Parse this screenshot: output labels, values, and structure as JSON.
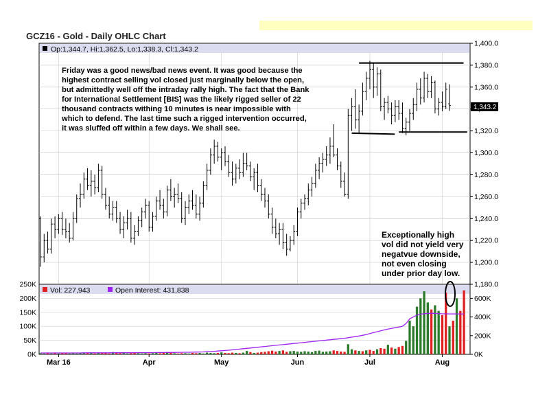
{
  "title": "GCZ16 - Gold - Daily OHLC Chart",
  "header_info": "Op:1,344.7, Hi:1,362.5, Lo:1,338.3, Cl:1,343.2",
  "last_price": "1,343.2",
  "colors": {
    "panel_header": "#dcdcf0",
    "highlight_bar": "#ffffc0",
    "ohlc": "#000000",
    "vol_up": "#2a7a2a",
    "vol_down": "#e02020",
    "open_interest": "#a020f0",
    "grid": "#cccccc"
  },
  "annotation_main": [
    "Friday was a good news/bad news event.  It was good because the",
    "highest contract selling vol closed just marginally below the open,",
    "but admittedly well off the intraday rally high.  The fact that the Bank",
    "for International Settlement [BIS] was the likely rigged seller of 22",
    "thousand contracts withing 10 minutes is near impossible with",
    "which to defend.  The last time such a rigged intervention occurred,",
    "it was sluffed off within a few days.  We shall see."
  ],
  "annotation_vol": [
    "Exceptionally high",
    "vol did not yield very",
    "negatvue downside,",
    "not even closing",
    "under prior day low."
  ],
  "chart_data": [
    {
      "type": "ohlc",
      "title": "GCZ16 - Gold - Daily OHLC Chart",
      "ylim": [
        1180,
        1400
      ],
      "y_ticks": [
        "1,400.0",
        "1,380.0",
        "1,360.0",
        "1,340.0",
        "1,320.0",
        "1,300.0",
        "1,280.0",
        "1,260.0",
        "1,240.0",
        "1,220.0",
        "1,200.0",
        "1,180.0"
      ],
      "y_tick_values": [
        1400,
        1380,
        1360,
        1340,
        1320,
        1300,
        1280,
        1260,
        1240,
        1220,
        1200,
        1180
      ],
      "x_labels": [
        "Mar 16",
        "Apr",
        "May",
        "Jun",
        "Jul",
        "Aug"
      ],
      "x_label_bar_index": [
        5,
        30,
        50,
        71,
        91,
        111
      ],
      "grid": true,
      "bars": [
        [
          1240,
          1242,
          1196,
          1205
        ],
        [
          1205,
          1226,
          1200,
          1220
        ],
        [
          1220,
          1228,
          1208,
          1212
        ],
        [
          1212,
          1240,
          1208,
          1235
        ],
        [
          1235,
          1242,
          1222,
          1230
        ],
        [
          1230,
          1244,
          1226,
          1240
        ],
        [
          1240,
          1246,
          1225,
          1230
        ],
        [
          1230,
          1240,
          1222,
          1228
        ],
        [
          1228,
          1236,
          1218,
          1222
        ],
        [
          1222,
          1246,
          1220,
          1240
        ],
        [
          1240,
          1262,
          1236,
          1258
        ],
        [
          1258,
          1272,
          1250,
          1262
        ],
        [
          1262,
          1282,
          1258,
          1276
        ],
        [
          1276,
          1286,
          1266,
          1270
        ],
        [
          1270,
          1284,
          1260,
          1274
        ],
        [
          1274,
          1280,
          1262,
          1268
        ],
        [
          1268,
          1290,
          1264,
          1284
        ],
        [
          1284,
          1288,
          1258,
          1262
        ],
        [
          1262,
          1268,
          1248,
          1252
        ],
        [
          1252,
          1260,
          1240,
          1244
        ],
        [
          1244,
          1256,
          1238,
          1250
        ],
        [
          1250,
          1256,
          1236,
          1240
        ],
        [
          1240,
          1246,
          1226,
          1230
        ],
        [
          1230,
          1242,
          1222,
          1236
        ],
        [
          1236,
          1248,
          1230,
          1240
        ],
        [
          1240,
          1246,
          1218,
          1222
        ],
        [
          1222,
          1234,
          1216,
          1228
        ],
        [
          1228,
          1242,
          1224,
          1238
        ],
        [
          1238,
          1250,
          1232,
          1246
        ],
        [
          1246,
          1258,
          1240,
          1252
        ],
        [
          1252,
          1256,
          1228,
          1232
        ],
        [
          1232,
          1246,
          1228,
          1242
        ],
        [
          1242,
          1260,
          1238,
          1256
        ],
        [
          1256,
          1266,
          1248,
          1252
        ],
        [
          1252,
          1258,
          1240,
          1246
        ],
        [
          1246,
          1270,
          1242,
          1266
        ],
        [
          1266,
          1276,
          1256,
          1260
        ],
        [
          1260,
          1268,
          1250,
          1262
        ],
        [
          1262,
          1272,
          1254,
          1258
        ],
        [
          1258,
          1264,
          1236,
          1240
        ],
        [
          1240,
          1256,
          1234,
          1250
        ],
        [
          1250,
          1262,
          1244,
          1256
        ],
        [
          1256,
          1266,
          1248,
          1252
        ],
        [
          1252,
          1262,
          1240,
          1244
        ],
        [
          1244,
          1260,
          1238,
          1254
        ],
        [
          1254,
          1274,
          1250,
          1270
        ],
        [
          1270,
          1290,
          1266,
          1284
        ],
        [
          1284,
          1304,
          1280,
          1298
        ],
        [
          1298,
          1312,
          1290,
          1306
        ],
        [
          1306,
          1310,
          1292,
          1296
        ],
        [
          1296,
          1304,
          1284,
          1300
        ],
        [
          1300,
          1306,
          1288,
          1292
        ],
        [
          1292,
          1298,
          1278,
          1282
        ],
        [
          1282,
          1292,
          1270,
          1276
        ],
        [
          1276,
          1290,
          1272,
          1286
        ],
        [
          1286,
          1294,
          1276,
          1282
        ],
        [
          1282,
          1300,
          1278,
          1290
        ],
        [
          1290,
          1300,
          1284,
          1288
        ],
        [
          1288,
          1292,
          1274,
          1278
        ],
        [
          1278,
          1286,
          1266,
          1282
        ],
        [
          1282,
          1290,
          1264,
          1270
        ],
        [
          1270,
          1276,
          1256,
          1262
        ],
        [
          1262,
          1268,
          1250,
          1256
        ],
        [
          1256,
          1262,
          1240,
          1244
        ],
        [
          1244,
          1250,
          1226,
          1232
        ],
        [
          1232,
          1240,
          1222,
          1226
        ],
        [
          1226,
          1236,
          1216,
          1230
        ],
        [
          1230,
          1236,
          1212,
          1218
        ],
        [
          1218,
          1226,
          1206,
          1212
        ],
        [
          1212,
          1224,
          1210,
          1220
        ],
        [
          1220,
          1234,
          1216,
          1228
        ],
        [
          1228,
          1250,
          1224,
          1246
        ],
        [
          1246,
          1258,
          1240,
          1254
        ],
        [
          1254,
          1262,
          1248,
          1258
        ],
        [
          1258,
          1272,
          1252,
          1266
        ],
        [
          1266,
          1278,
          1260,
          1272
        ],
        [
          1272,
          1290,
          1268,
          1284
        ],
        [
          1284,
          1296,
          1276,
          1290
        ],
        [
          1290,
          1300,
          1282,
          1294
        ],
        [
          1294,
          1306,
          1288,
          1298
        ],
        [
          1298,
          1314,
          1290,
          1306
        ],
        [
          1306,
          1326,
          1296,
          1298
        ],
        [
          1298,
          1304,
          1284,
          1288
        ],
        [
          1288,
          1292,
          1268,
          1274
        ],
        [
          1274,
          1282,
          1260,
          1262
        ],
        [
          1262,
          1340,
          1258,
          1334
        ],
        [
          1334,
          1350,
          1320,
          1342
        ],
        [
          1342,
          1358,
          1322,
          1330
        ],
        [
          1330,
          1344,
          1318,
          1338
        ],
        [
          1338,
          1364,
          1334,
          1356
        ],
        [
          1356,
          1374,
          1348,
          1368
        ],
        [
          1368,
          1384,
          1358,
          1376
        ],
        [
          1376,
          1382,
          1350,
          1360
        ],
        [
          1360,
          1378,
          1352,
          1372
        ],
        [
          1372,
          1376,
          1338,
          1342
        ],
        [
          1342,
          1350,
          1330,
          1346
        ],
        [
          1346,
          1352,
          1336,
          1340
        ],
        [
          1340,
          1346,
          1326,
          1334
        ],
        [
          1334,
          1348,
          1328,
          1342
        ],
        [
          1342,
          1348,
          1330,
          1336
        ],
        [
          1336,
          1346,
          1318,
          1322
        ],
        [
          1322,
          1332,
          1316,
          1328
        ],
        [
          1328,
          1340,
          1320,
          1336
        ],
        [
          1336,
          1350,
          1330,
          1344
        ],
        [
          1344,
          1364,
          1338,
          1358
        ],
        [
          1358,
          1368,
          1344,
          1350
        ],
        [
          1350,
          1374,
          1346,
          1368
        ],
        [
          1368,
          1372,
          1350,
          1356
        ],
        [
          1356,
          1370,
          1350,
          1364
        ],
        [
          1364,
          1366,
          1336,
          1340
        ],
        [
          1340,
          1350,
          1334,
          1346
        ],
        [
          1346,
          1356,
          1338,
          1342
        ],
        [
          1342,
          1364,
          1340,
          1358
        ],
        [
          1344.7,
          1362.5,
          1338.3,
          1343.2
        ]
      ],
      "trendlines": [
        {
          "from": [
            88,
            1382
          ],
          "to": [
            115,
            1382
          ]
        },
        {
          "from": [
            86,
            1318
          ],
          "to": [
            96,
            1317
          ]
        },
        {
          "from": [
            99,
            1319
          ],
          "to": [
            116,
            1319
          ]
        }
      ]
    },
    {
      "type": "bar",
      "legend": [
        {
          "name": "Vol: 227,943",
          "color": "#e02020"
        },
        {
          "name": "Open Interest: 431,838",
          "color": "#a020f0"
        }
      ],
      "ylim": [
        0,
        250000
      ],
      "y_ticks_left": [
        "250K",
        "200K",
        "150K",
        "100K",
        "50K",
        "0K"
      ],
      "y_ticks_right": [
        "600K",
        "400K",
        "200K",
        "0K"
      ],
      "y_ticks_right_values": [
        600000,
        400000,
        200000,
        0
      ],
      "oi_scale_max": 750000,
      "volume": [
        4000,
        3000,
        5000,
        3000,
        4000,
        3000,
        4000,
        5000,
        3000,
        4000,
        3000,
        4000,
        5000,
        6000,
        4000,
        3000,
        4000,
        5000,
        4000,
        3000,
        8000,
        6000,
        4000,
        5000,
        3000,
        4000,
        5000,
        4000,
        3000,
        4000,
        3000,
        4000,
        5000,
        4000,
        6000,
        8000,
        7000,
        4000,
        3000,
        4000,
        4000,
        3000,
        5000,
        4000,
        5000,
        3000,
        6000,
        5000,
        4000,
        5000,
        7000,
        5000,
        4000,
        6000,
        5000,
        4000,
        6000,
        12000,
        8000,
        5000,
        6000,
        8000,
        9000,
        11000,
        13000,
        10000,
        12000,
        14000,
        9000,
        11000,
        12000,
        10000,
        9000,
        11000,
        10000,
        8000,
        12000,
        13000,
        9000,
        10000,
        11000,
        14000,
        12000,
        10000,
        9000,
        36000,
        18000,
        14000,
        12000,
        11000,
        14000,
        16000,
        12000,
        18000,
        22000,
        20000,
        34000,
        24000,
        20000,
        26000,
        30000,
        48000,
        120000,
        100000,
        170000,
        200000,
        225000,
        185000,
        160000,
        175000,
        155000,
        140000,
        220000,
        100000,
        120000,
        200000,
        155000,
        227943
      ],
      "volume_up": [
        true,
        true,
        false,
        true,
        false,
        true,
        false,
        false,
        true,
        true,
        true,
        true,
        true,
        false,
        true,
        false,
        true,
        false,
        false,
        false,
        true,
        false,
        false,
        true,
        true,
        false,
        false,
        true,
        true,
        true,
        false,
        true,
        true,
        false,
        false,
        true,
        false,
        true,
        false,
        false,
        true,
        true,
        false,
        false,
        true,
        true,
        true,
        true,
        true,
        false,
        true,
        false,
        false,
        false,
        true,
        false,
        true,
        true,
        false,
        true,
        false,
        false,
        false,
        false,
        false,
        false,
        true,
        false,
        false,
        true,
        true,
        true,
        true,
        true,
        true,
        true,
        true,
        true,
        true,
        true,
        true,
        false,
        false,
        false,
        false,
        true,
        true,
        false,
        true,
        false,
        true,
        false,
        false,
        true,
        false,
        false,
        true,
        false,
        true,
        false,
        false,
        true,
        true,
        true,
        true,
        true,
        true,
        true,
        false,
        true,
        true,
        false,
        false,
        true,
        false,
        true,
        false,
        false
      ],
      "open_interest": [
        15000,
        15000,
        15000,
        15000,
        15000,
        15000,
        15000,
        15000,
        15000,
        15000,
        15000,
        15000,
        16000,
        16000,
        16000,
        16000,
        16000,
        16000,
        16000,
        16000,
        17000,
        17000,
        17000,
        17000,
        17000,
        17000,
        18000,
        18000,
        18000,
        18000,
        18000,
        18000,
        19000,
        19000,
        19000,
        20000,
        20000,
        20000,
        21000,
        21000,
        22000,
        22000,
        23000,
        24000,
        25000,
        26000,
        28000,
        30000,
        32000,
        35000,
        38000,
        41000,
        44000,
        48000,
        52000,
        56000,
        60000,
        64000,
        68000,
        72000,
        76000,
        80000,
        84000,
        88000,
        92000,
        96000,
        100000,
        104000,
        108000,
        112000,
        116000,
        120000,
        124000,
        128000,
        132000,
        136000,
        140000,
        144000,
        148000,
        152000,
        156000,
        160000,
        164000,
        168000,
        172000,
        178000,
        184000,
        190000,
        196000,
        204000,
        212000,
        222000,
        232000,
        242000,
        252000,
        262000,
        270000,
        278000,
        285000,
        292000,
        300000,
        330000,
        380000,
        400000,
        420000,
        430000,
        435000,
        438000,
        440000,
        438000,
        436000,
        434000,
        434000,
        433000,
        432000,
        432000,
        432000,
        431838
      ]
    }
  ]
}
